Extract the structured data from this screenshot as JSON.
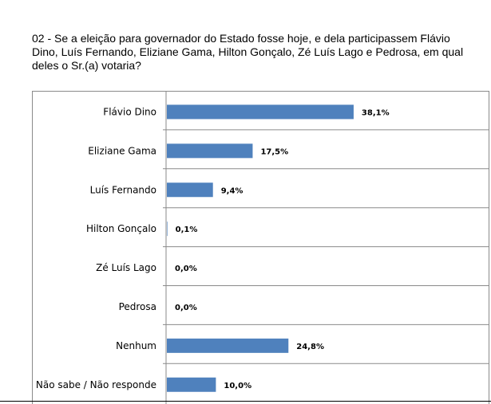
{
  "question": {
    "text": "02 - Se a eleição para governador do Estado fosse hoje, e dela participassem Flávio Dino, Luís Fernando, Eliziane Gama, Hilton Gonçalo, Zé Luís Lago e  Pedrosa, em qual  deles o Sr.(a) votaria?"
  },
  "chart_data": {
    "type": "bar",
    "orientation": "horizontal",
    "categories": [
      "Flávio Dino",
      "Eliziane Gama",
      "Luís Fernando",
      "Hilton Gonçalo",
      "Zé Luís Lago",
      "Pedrosa",
      "Nenhum",
      "Não sabe / Não responde"
    ],
    "values": [
      38.1,
      17.5,
      9.4,
      0.1,
      0.0,
      0.0,
      24.8,
      10.0
    ],
    "value_labels": [
      "38,1%",
      "17,5%",
      "9,4%",
      "0,1%",
      "0,0%",
      "0,0%",
      "24,8%",
      "10,0%"
    ],
    "xlim": [
      0,
      50
    ],
    "grid": true,
    "bar_color": "#4f81bd",
    "grid_color": "#8a8a8a"
  }
}
